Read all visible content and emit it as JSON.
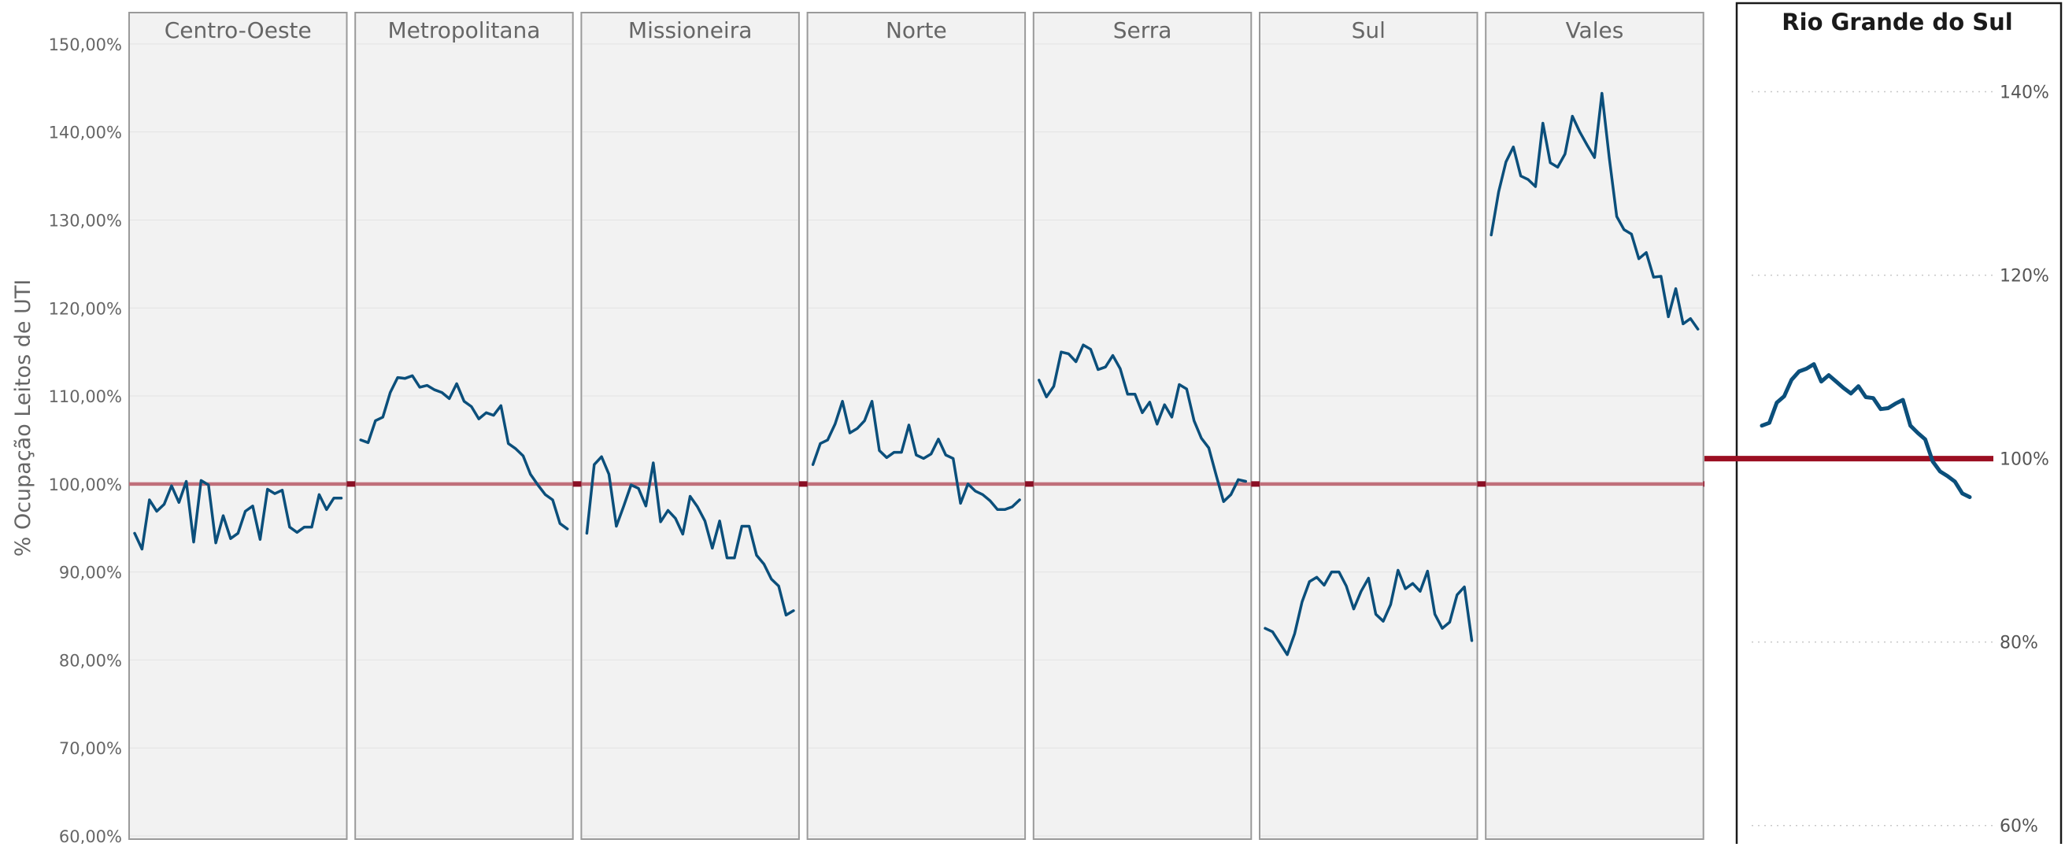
{
  "chart_data": [
    {
      "type": "line",
      "layout": "small-multiples",
      "ylabel": "% Ocupação Leitos de UTI",
      "ylim": [
        60,
        155
      ],
      "yticks": [
        "60,00%",
        "70,00%",
        "80,00%",
        "90,00%",
        "100,00%",
        "110,00%",
        "120,00%",
        "130,00%",
        "140,00%",
        "150,00%"
      ],
      "ytick_values": [
        60,
        70,
        80,
        90,
        100,
        110,
        120,
        130,
        140,
        150
      ],
      "reference_line": {
        "value": 100,
        "color": "#c0707a"
      },
      "line_color": "#0b4f7b",
      "panel_fill": "#f2f2f2",
      "grid": true,
      "panels": [
        {
          "name": "Centro-Oeste",
          "values": [
            94.4,
            92.6,
            98.2,
            96.9,
            97.7,
            99.8,
            97.9,
            100.3,
            93.4,
            100.4,
            99.9,
            93.3,
            96.4,
            93.8,
            94.4,
            96.9,
            97.5,
            93.7,
            99.4,
            98.9,
            99.3,
            95.1,
            94.5,
            95.1,
            95.1,
            98.8,
            97.1,
            98.4,
            98.4
          ]
        },
        {
          "name": "Metropolitana",
          "values": [
            105.0,
            104.7,
            107.2,
            107.6,
            110.4,
            112.1,
            112.0,
            112.3,
            111.0,
            111.2,
            110.7,
            110.4,
            109.7,
            111.4,
            109.4,
            108.8,
            107.4,
            108.1,
            107.8,
            108.9,
            104.6,
            104.0,
            103.2,
            101.1,
            99.9,
            98.8,
            98.2,
            95.5,
            94.9
          ]
        },
        {
          "name": "Missioneira",
          "values": [
            94.4,
            102.2,
            103.1,
            101.1,
            95.2,
            97.5,
            99.9,
            99.5,
            97.5,
            102.4,
            95.7,
            97.0,
            96.1,
            94.3,
            98.6,
            97.4,
            95.8,
            92.7,
            95.8,
            91.6,
            91.6,
            95.2,
            95.2,
            91.9,
            90.9,
            89.2,
            88.4,
            85.1,
            85.6
          ]
        },
        {
          "name": "Norte",
          "values": [
            102.2,
            104.6,
            105.0,
            106.8,
            109.4,
            105.8,
            106.3,
            107.2,
            109.4,
            103.8,
            103.0,
            103.6,
            103.6,
            106.7,
            103.3,
            102.9,
            103.4,
            105.1,
            103.3,
            102.9,
            97.8,
            100.0,
            99.2,
            98.8,
            98.1,
            97.1,
            97.1,
            97.4,
            98.2
          ]
        },
        {
          "name": "Serra",
          "values": [
            111.8,
            109.9,
            111.1,
            115.0,
            114.8,
            113.9,
            115.8,
            115.3,
            113.0,
            113.3,
            114.6,
            113.1,
            110.2,
            110.2,
            108.1,
            109.3,
            106.8,
            109.0,
            107.6,
            111.3,
            110.8,
            107.2,
            105.2,
            104.1,
            101.0,
            98.0,
            98.8,
            100.5,
            100.3
          ]
        },
        {
          "name": "Sul",
          "values": [
            83.6,
            83.2,
            81.9,
            80.6,
            83.0,
            86.6,
            88.9,
            89.4,
            88.5,
            90.0,
            90.0,
            88.4,
            85.8,
            87.8,
            89.3,
            85.2,
            84.4,
            86.3,
            90.2,
            88.1,
            88.7,
            87.8,
            90.1,
            85.2,
            83.6,
            84.3,
            87.4,
            88.3,
            82.2
          ]
        },
        {
          "name": "Vales",
          "values": [
            128.3,
            133.2,
            136.6,
            138.3,
            135.0,
            134.6,
            133.8,
            141.0,
            136.5,
            136.0,
            137.5,
            141.8,
            140.0,
            138.5,
            137.1,
            144.4,
            137.0,
            130.4,
            128.9,
            128.4,
            125.6,
            126.3,
            123.5,
            123.6,
            119.0,
            122.2,
            118.2,
            118.8,
            117.6
          ]
        }
      ]
    },
    {
      "type": "line",
      "title": "Rio Grande do Sul",
      "ylim": [
        58,
        150
      ],
      "yticks": [
        "60%",
        "80%",
        "100%",
        "120%",
        "140%"
      ],
      "ytick_values": [
        60,
        80,
        100,
        120,
        140
      ],
      "reference_line": {
        "value": 100,
        "color": "#9b0f22"
      },
      "line_color": "#0b4f7b",
      "grid": "dotted",
      "values": [
        103.6,
        103.9,
        106.1,
        106.8,
        108.6,
        109.5,
        109.8,
        110.3,
        108.4,
        109.1,
        108.4,
        107.7,
        107.1,
        107.9,
        106.7,
        106.6,
        105.4,
        105.5,
        106.0,
        106.4,
        103.6,
        102.8,
        102.1,
        99.7,
        98.6,
        98.1,
        97.5,
        96.2,
        95.8
      ]
    }
  ]
}
